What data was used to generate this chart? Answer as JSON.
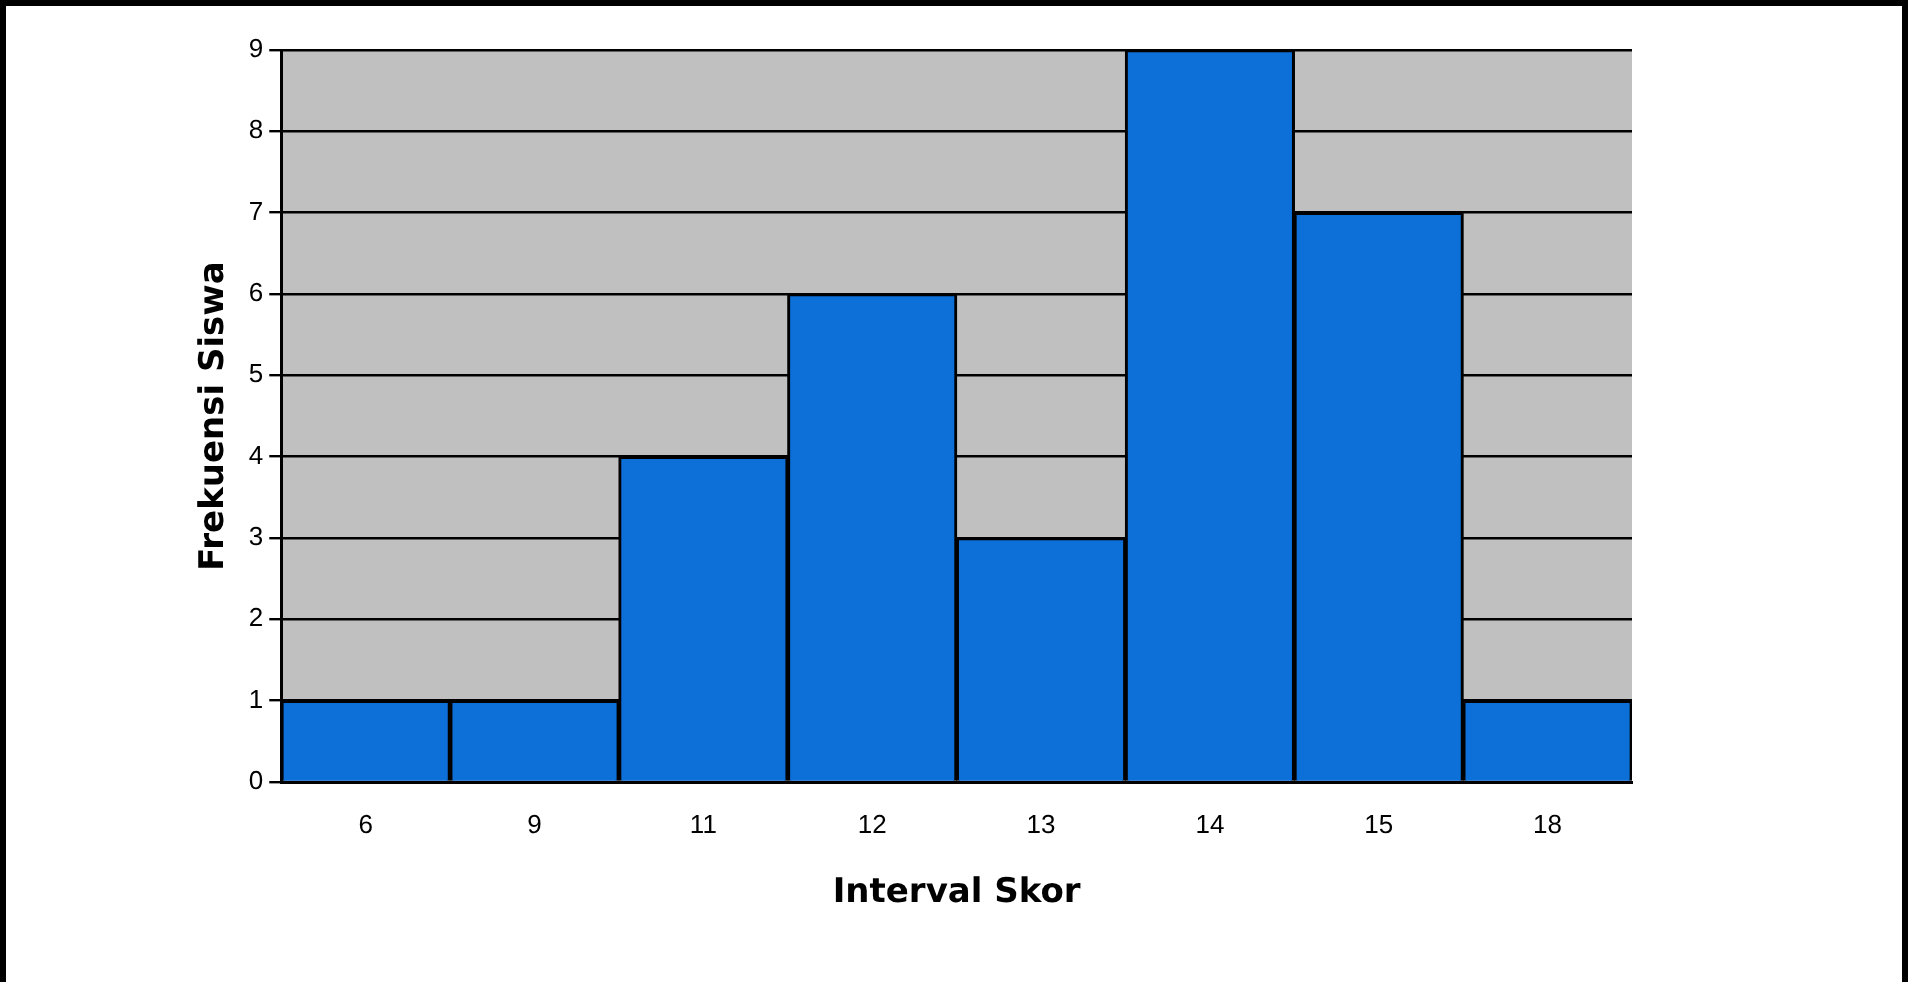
{
  "chart_data": {
    "type": "bar",
    "xlabel": "Interval Skor",
    "ylabel": "Frekuensi Siswa",
    "categories": [
      "6",
      "9",
      "11",
      "12",
      "13",
      "14",
      "15",
      "18"
    ],
    "values": [
      1,
      1,
      4,
      6,
      3,
      9,
      7,
      1
    ],
    "color": "#0d6fd8",
    "ylim": [
      0,
      9
    ],
    "yticks": [
      0,
      1,
      2,
      3,
      4,
      5,
      6,
      7,
      8,
      9
    ],
    "grid": "y",
    "legend": false
  }
}
